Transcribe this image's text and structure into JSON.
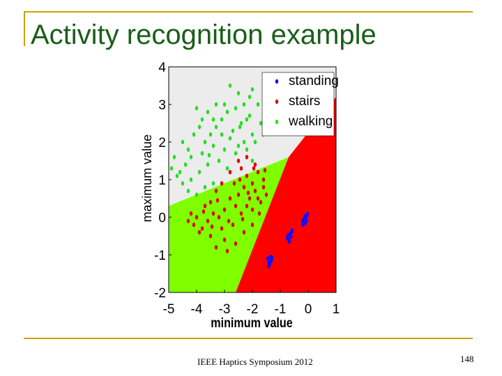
{
  "slide": {
    "title": "Activity recognition example",
    "footer": "IEEE Haptics Symposium 2012",
    "page_number": "148"
  },
  "colors": {
    "accent_rule": "#c8a400",
    "title": "#1a5e1a",
    "region_standing": "#ececec",
    "region_stairs": "#ff0000",
    "region_walking": "#80ff00"
  },
  "chart_data": {
    "type": "scatter",
    "xlabel": "minimum value",
    "ylabel": "maximum value",
    "xlim": [
      -5,
      1
    ],
    "ylim": [
      -2,
      4
    ],
    "x_ticks": [
      "-5",
      "-4",
      "-3",
      "-2",
      "-1",
      "0",
      "1"
    ],
    "y_ticks": [
      "-2",
      "-1",
      "0",
      "1",
      "2",
      "3",
      "4"
    ],
    "legend_position": "top-right",
    "background_regions": [
      {
        "class": "standing",
        "color": "#ececec",
        "polygon": [
          [
            -5,
            4
          ],
          [
            1,
            4
          ],
          [
            1,
            3.2
          ],
          [
            -0.7,
            1.6
          ],
          [
            -5,
            0.3
          ]
        ]
      },
      {
        "class": "walking",
        "color": "#80ff00",
        "polygon": [
          [
            -5,
            0.3
          ],
          [
            -0.7,
            1.6
          ],
          [
            -2.6,
            -2
          ],
          [
            -5,
            -2
          ]
        ]
      },
      {
        "class": "stairs",
        "color": "#ff0000",
        "polygon": [
          [
            -0.7,
            1.6
          ],
          [
            1,
            3.2
          ],
          [
            1,
            -2
          ],
          [
            -2.6,
            -2
          ]
        ]
      }
    ],
    "series": [
      {
        "name": "standing",
        "color": "#1010ff",
        "points": [
          [
            -1.45,
            -1.1
          ],
          [
            -1.4,
            -1.2
          ],
          [
            -1.35,
            -1.05
          ],
          [
            -1.38,
            -1.25
          ],
          [
            -1.32,
            -1.15
          ],
          [
            -1.42,
            -1.3
          ],
          [
            -1.3,
            -1.08
          ],
          [
            -1.36,
            -1.18
          ],
          [
            -0.75,
            -0.55
          ],
          [
            -0.7,
            -0.6
          ],
          [
            -0.72,
            -0.48
          ],
          [
            -0.65,
            -0.45
          ],
          [
            -0.68,
            -0.65
          ],
          [
            -0.6,
            -0.4
          ],
          [
            -0.62,
            -0.52
          ],
          [
            -0.58,
            -0.35
          ],
          [
            -0.2,
            -0.1
          ],
          [
            -0.15,
            -0.05
          ],
          [
            -0.12,
            0.02
          ],
          [
            -0.05,
            0.05
          ],
          [
            -0.1,
            -0.15
          ],
          [
            -0.08,
            0.0
          ],
          [
            -0.02,
            0.08
          ],
          [
            -0.18,
            -0.2
          ],
          [
            -0.06,
            -0.08
          ]
        ]
      },
      {
        "name": "stairs",
        "color": "#e00000",
        "points": [
          [
            -2.4,
            1.3
          ],
          [
            -2.2,
            1.1
          ],
          [
            -2.0,
            0.9
          ],
          [
            -1.8,
            1.2
          ],
          [
            -1.6,
            0.8
          ],
          [
            -1.5,
            0.6
          ],
          [
            -1.7,
            0.4
          ],
          [
            -1.9,
            0.7
          ],
          [
            -2.1,
            0.5
          ],
          [
            -2.3,
            0.8
          ],
          [
            -2.5,
            0.6
          ],
          [
            -2.6,
            0.3
          ],
          [
            -2.8,
            0.5
          ],
          [
            -3.0,
            0.2
          ],
          [
            -3.2,
            0.0
          ],
          [
            -3.4,
            0.1
          ],
          [
            -3.6,
            -0.1
          ],
          [
            -3.8,
            -0.3
          ],
          [
            -4.0,
            0.0
          ],
          [
            -4.2,
            0.1
          ],
          [
            -3.9,
            -0.4
          ],
          [
            -3.5,
            -0.5
          ],
          [
            -3.1,
            -0.3
          ],
          [
            -2.7,
            -0.2
          ],
          [
            -2.4,
            0.1
          ],
          [
            -2.2,
            0.3
          ],
          [
            -2.0,
            0.2
          ],
          [
            -1.8,
            0.5
          ],
          [
            -1.6,
            1.0
          ],
          [
            -1.9,
            1.4
          ],
          [
            -2.2,
            1.6
          ],
          [
            -2.5,
            1.5
          ],
          [
            -2.8,
            1.2
          ],
          [
            -3.1,
            0.9
          ],
          [
            -3.3,
            0.7
          ],
          [
            -3.5,
            0.4
          ],
          [
            -3.7,
            0.3
          ],
          [
            -4.1,
            -0.2
          ],
          [
            -4.3,
            -0.1
          ],
          [
            -3.0,
            -0.6
          ],
          [
            -2.6,
            -0.7
          ],
          [
            -2.9,
            -0.9
          ],
          [
            -3.3,
            -0.8
          ],
          [
            -2.3,
            -0.4
          ],
          [
            -2.0,
            -0.2
          ],
          [
            -1.75,
            0.1
          ],
          [
            -2.15,
            0.65
          ],
          [
            -2.65,
            0.9
          ],
          [
            -3.25,
            0.45
          ],
          [
            -3.75,
            0.15
          ],
          [
            -2.45,
            1.0
          ],
          [
            -1.95,
            1.3
          ],
          [
            -1.55,
            1.25
          ],
          [
            -2.35,
            -0.05
          ],
          [
            -2.85,
            -0.1
          ],
          [
            -3.45,
            -0.25
          ]
        ]
      },
      {
        "name": "walking",
        "color": "#22e022",
        "points": [
          [
            -3.0,
            3.0
          ],
          [
            -2.9,
            2.8
          ],
          [
            -2.6,
            2.9
          ],
          [
            -2.4,
            2.5
          ],
          [
            -2.2,
            2.6
          ],
          [
            -2.0,
            2.2
          ],
          [
            -2.3,
            2.0
          ],
          [
            -2.7,
            2.3
          ],
          [
            -3.1,
            2.6
          ],
          [
            -3.3,
            2.4
          ],
          [
            -3.5,
            2.2
          ],
          [
            -3.7,
            2.0
          ],
          [
            -3.9,
            2.4
          ],
          [
            -4.1,
            2.2
          ],
          [
            -4.3,
            1.8
          ],
          [
            -4.5,
            2.0
          ],
          [
            -4.2,
            1.6
          ],
          [
            -3.8,
            1.7
          ],
          [
            -3.4,
            1.9
          ],
          [
            -3.0,
            1.8
          ],
          [
            -2.6,
            1.7
          ],
          [
            -2.2,
            1.8
          ],
          [
            -1.9,
            2.0
          ],
          [
            -1.7,
            2.5
          ],
          [
            -1.5,
            2.8
          ],
          [
            -1.8,
            3.0
          ],
          [
            -2.1,
            3.2
          ],
          [
            -2.5,
            3.3
          ],
          [
            -2.8,
            3.5
          ],
          [
            -2.0,
            3.4
          ],
          [
            -3.3,
            3.0
          ],
          [
            -3.6,
            2.8
          ],
          [
            -4.0,
            2.9
          ],
          [
            -4.4,
            1.4
          ],
          [
            -4.6,
            1.2
          ],
          [
            -4.2,
            1.0
          ],
          [
            -3.9,
            1.2
          ],
          [
            -3.6,
            1.4
          ],
          [
            -3.2,
            1.5
          ],
          [
            -2.9,
            1.3
          ],
          [
            -2.5,
            1.9
          ],
          [
            -2.3,
            3.0
          ],
          [
            -1.6,
            2.2
          ],
          [
            -1.4,
            2.4
          ],
          [
            -2.1,
            2.7
          ],
          [
            -3.4,
            2.6
          ],
          [
            -3.8,
            2.6
          ],
          [
            -4.8,
            1.6
          ],
          [
            -4.9,
            1.3
          ],
          [
            -4.7,
            1.1
          ],
          [
            -4.5,
            0.9
          ],
          [
            -4.3,
            0.7
          ],
          [
            -4.0,
            0.6
          ],
          [
            -3.7,
            0.8
          ],
          [
            -3.4,
            0.9
          ],
          [
            -2.8,
            2.1
          ],
          [
            -3.1,
            2.2
          ],
          [
            -2.45,
            2.4
          ],
          [
            -3.55,
            1.65
          ],
          [
            -2.0,
            1.5
          ]
        ]
      }
    ]
  }
}
